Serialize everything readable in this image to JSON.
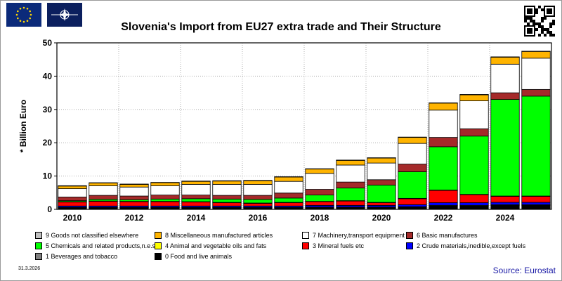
{
  "header": {
    "title": "Slovenia's Import from EU27 extra trade and Their Structure"
  },
  "footer": {
    "date": "31.3.2026",
    "source": "Source: Eurostat"
  },
  "chart_data": {
    "type": "bar",
    "stacked": true,
    "title": "Slovenia's Import from EU27 extra trade and Their Structure",
    "ylabel": "* Billion Euro",
    "xlabel": "",
    "ylim": [
      0,
      50
    ],
    "yticks": [
      0,
      10,
      20,
      30,
      40,
      50
    ],
    "categories": [
      "2010",
      "2011",
      "2012",
      "2013",
      "2014",
      "2015",
      "2016",
      "2017",
      "2018",
      "2019",
      "2020",
      "2021",
      "2022",
      "2023",
      "2024",
      "2025"
    ],
    "xtick_labels": [
      "2010",
      "2012",
      "2014",
      "2016",
      "2018",
      "2020",
      "2022",
      "2024"
    ],
    "grid": true,
    "legend_position": "bottom",
    "series": [
      {
        "name": "0 Food and live animals",
        "color": "#000000",
        "values": [
          0.5,
          0.5,
          0.5,
          0.5,
          0.5,
          0.5,
          0.5,
          0.5,
          0.6,
          0.6,
          0.6,
          0.7,
          1.0,
          1.0,
          1.2,
          1.2
        ]
      },
      {
        "name": "1 Beverages and tobacco",
        "color": "#808080",
        "values": [
          0.1,
          0.1,
          0.1,
          0.1,
          0.1,
          0.1,
          0.1,
          0.1,
          0.1,
          0.1,
          0.1,
          0.1,
          0.2,
          0.2,
          0.2,
          0.2
        ]
      },
      {
        "name": "2 Crude materials,inedible,except fuels",
        "color": "#0000ff",
        "values": [
          0.4,
          0.4,
          0.4,
          0.4,
          0.4,
          0.4,
          0.4,
          0.4,
          0.5,
          0.5,
          0.5,
          0.6,
          0.8,
          0.8,
          0.7,
          0.7
        ]
      },
      {
        "name": "3 Mineral fuels etc",
        "color": "#ff0000",
        "values": [
          1.2,
          1.4,
          1.3,
          1.3,
          1.2,
          1.0,
          0.8,
          1.0,
          1.1,
          1.3,
          0.8,
          1.8,
          3.7,
          2.4,
          1.8,
          1.8
        ]
      },
      {
        "name": "4 Animal and vegetable oils and fats",
        "color": "#ffff00",
        "values": [
          0.1,
          0.1,
          0.1,
          0.1,
          0.1,
          0.1,
          0.1,
          0.1,
          0.1,
          0.1,
          0.1,
          0.1,
          0.1,
          0.1,
          0.1,
          0.1
        ]
      },
      {
        "name": "5 Chemicals and related products,n.e.s.",
        "color": "#00ff00",
        "values": [
          0.3,
          0.5,
          0.5,
          0.7,
          0.9,
          1.0,
          1.1,
          1.3,
          1.9,
          3.8,
          5.2,
          8.0,
          13.0,
          17.5,
          29.0,
          30.0
        ]
      },
      {
        "name": "6 Basic manufactures",
        "color": "#a52a2a",
        "values": [
          1.1,
          1.2,
          1.1,
          1.2,
          1.1,
          1.1,
          1.2,
          1.5,
          1.7,
          1.8,
          1.6,
          2.3,
          2.8,
          2.2,
          2.0,
          2.0
        ]
      },
      {
        "name": "7 Machinery,transport equipment",
        "color": "#ffffff",
        "values": [
          2.5,
          2.9,
          2.7,
          2.8,
          3.2,
          3.3,
          3.3,
          3.5,
          4.8,
          5.1,
          5.0,
          6.2,
          8.2,
          8.4,
          8.6,
          9.4
        ]
      },
      {
        "name": "8 Miscellaneous manufactured articles",
        "color": "#ffb400",
        "values": [
          0.8,
          0.8,
          0.8,
          0.9,
          0.9,
          1.0,
          1.1,
          1.3,
          1.3,
          1.4,
          1.5,
          1.8,
          2.1,
          1.8,
          2.1,
          2.0
        ]
      },
      {
        "name": "9 Goods not classified elsewhere",
        "color": "#c0c0c0",
        "values": [
          0.1,
          0.1,
          0.1,
          0.1,
          0.1,
          0.1,
          0.1,
          0.1,
          0.1,
          0.1,
          0.1,
          0.1,
          0.1,
          0.1,
          0.1,
          0.1
        ]
      }
    ]
  },
  "legend_order": [
    9,
    8,
    7,
    6,
    5,
    4,
    3,
    2,
    1,
    0
  ],
  "icons": {
    "eu_flag": "eu-flag-icon",
    "nato_flag": "nato-flag-icon",
    "qr": "qr-code-icon"
  }
}
